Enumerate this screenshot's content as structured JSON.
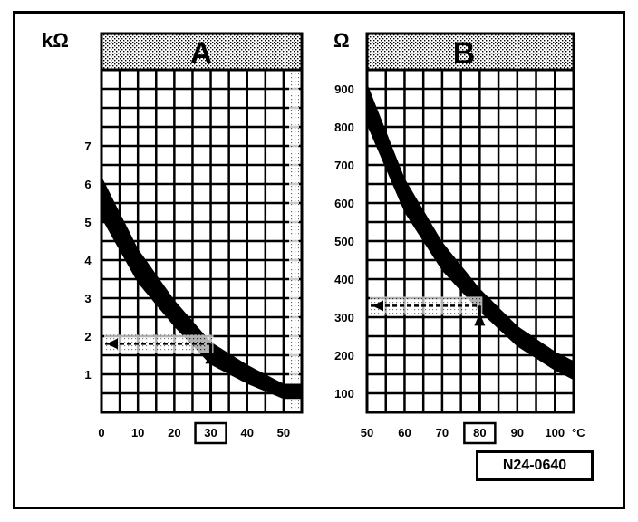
{
  "figure_ref": "N24-0640",
  "chart_data": [
    {
      "type": "area",
      "title": "A",
      "ylabel": "kΩ",
      "xlabel": "",
      "xlim": [
        0,
        55
      ],
      "ylim": [
        0,
        9
      ],
      "xticks": [
        "0",
        "10",
        "20",
        "30",
        "40",
        "50"
      ],
      "yticks": [
        "1",
        "2",
        "3",
        "4",
        "5",
        "6",
        "7"
      ],
      "grid": true,
      "band_center": {
        "x": [
          0,
          10,
          20,
          30,
          40,
          50
        ],
        "y": [
          5.65,
          3.85,
          2.6,
          1.55,
          1.0,
          0.55
        ]
      },
      "band_halfwidth": {
        "x": [
          0,
          10,
          20,
          30,
          40,
          50
        ],
        "y": [
          0.55,
          0.45,
          0.35,
          0.3,
          0.25,
          0.2
        ]
      },
      "reading": {
        "x": 30,
        "y": 1.8
      },
      "highlight_tick": "30"
    },
    {
      "type": "area",
      "title": "B",
      "ylabel": "Ω",
      "xlabel": "°C",
      "xlim": [
        50,
        105
      ],
      "ylim": [
        50,
        950
      ],
      "xticks": [
        "50",
        "60",
        "70",
        "80",
        "90",
        "100"
      ],
      "yticks": [
        "100",
        "200",
        "300",
        "400",
        "500",
        "600",
        "700",
        "800",
        "900"
      ],
      "grid": true,
      "band_center": {
        "x": [
          50,
          60,
          70,
          80,
          90,
          100,
          105
        ],
        "y": [
          860,
          620,
          460,
          345,
          250,
          185,
          160
        ]
      },
      "band_halfwidth": {
        "x": [
          50,
          60,
          70,
          80,
          90,
          100,
          105
        ],
        "y": [
          55,
          45,
          38,
          30,
          27,
          25,
          25
        ]
      },
      "reading": {
        "x": 80,
        "y": 330
      },
      "highlight_tick": "80"
    }
  ]
}
